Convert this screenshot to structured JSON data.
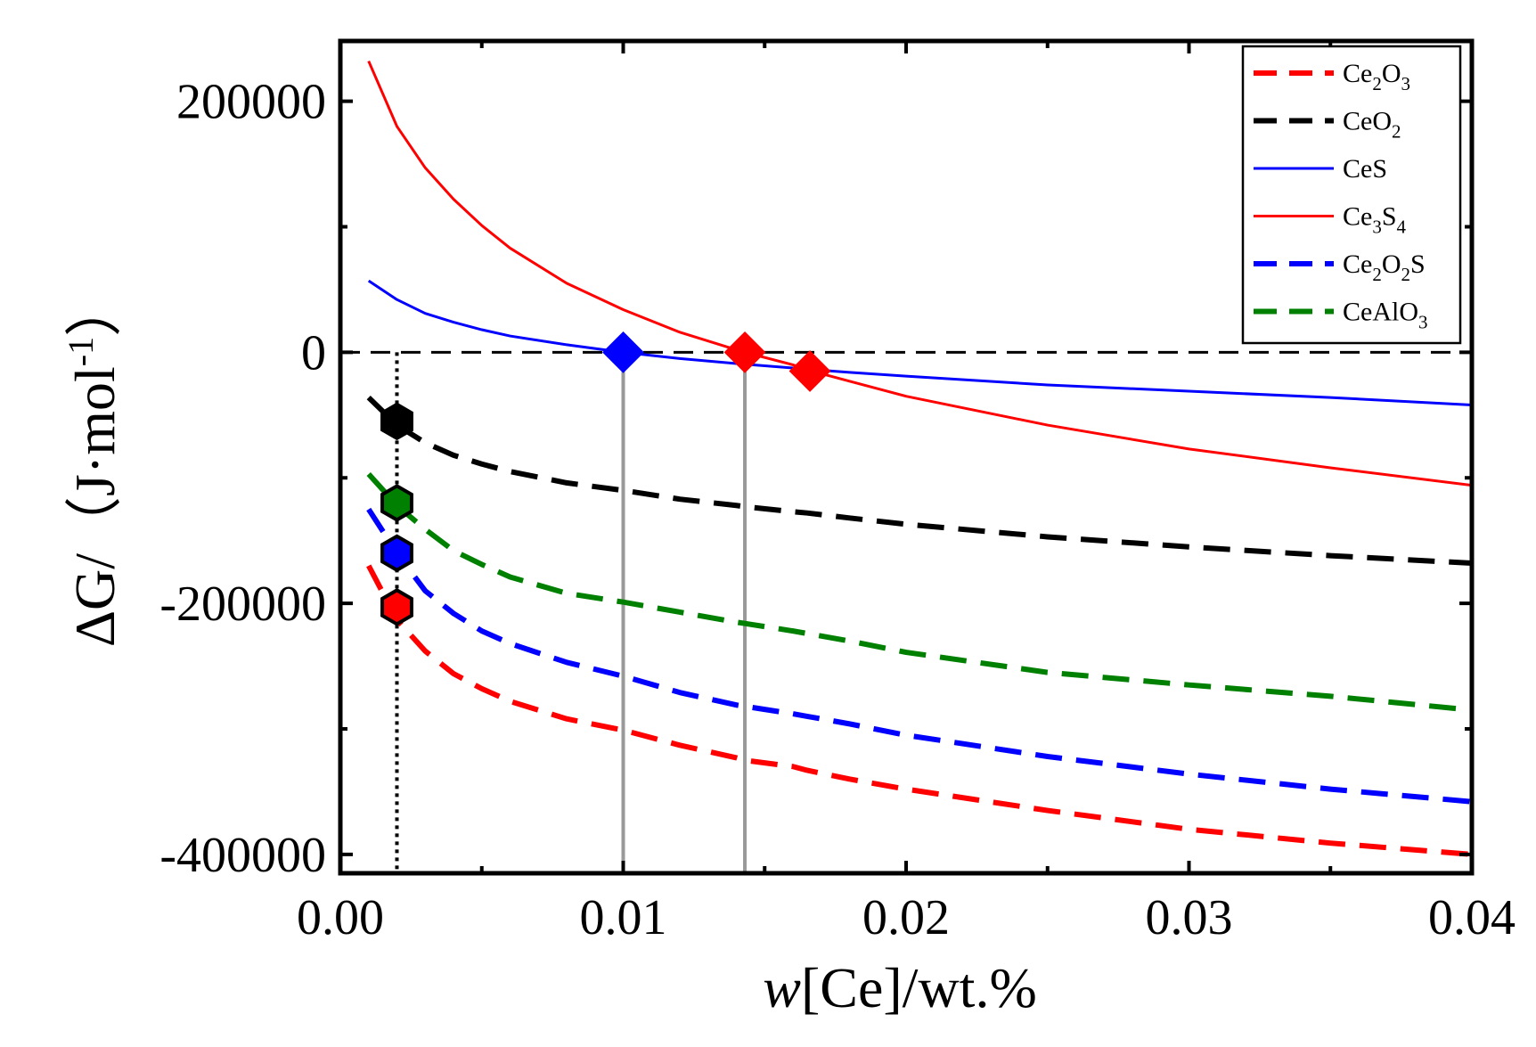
{
  "chart_data": {
    "type": "line",
    "xlabel_italic": "w",
    "xlabel_rest": "[Ce]/wt.%",
    "ylabel": "ΔG/（J·mol",
    "ylabel_sup": "-1",
    "ylabel_close": "）",
    "xlim": [
      0.0,
      0.04
    ],
    "ylim": [
      -415000,
      248000
    ],
    "x_ticks": [
      0.0,
      0.01,
      0.02,
      0.03,
      0.04
    ],
    "x_tick_labels": [
      "0.00",
      "0.01",
      "0.02",
      "0.03",
      "0.04"
    ],
    "x_minor_ticks": [
      0.005,
      0.015,
      0.025,
      0.035
    ],
    "y_ticks": [
      200000,
      0,
      -200000,
      -400000
    ],
    "y_tick_labels": [
      "200000",
      "0",
      "-200000",
      "-400000"
    ],
    "y_minor_ticks": [
      100000,
      -100000,
      -300000
    ],
    "x": [
      0.001,
      0.002,
      0.003,
      0.004,
      0.005,
      0.006,
      0.008,
      0.01,
      0.012,
      0.014,
      0.0143,
      0.016,
      0.0165,
      0.018,
      0.02,
      0.025,
      0.03,
      0.035,
      0.04
    ],
    "series": [
      {
        "name": "Ce2O3",
        "color": "#ff0000",
        "style": "dashed",
        "values": [
          -170000,
          -213000,
          -238000,
          -256000,
          -268000,
          -278000,
          -292000,
          -301000,
          -313000,
          -323000,
          -325000,
          -330000,
          -333000,
          -340000,
          -348000,
          -365000,
          -380000,
          -391000,
          -400000
        ]
      },
      {
        "name": "CeO2",
        "color": "#000000",
        "style": "dashed",
        "values": [
          -36000,
          -58000,
          -72000,
          -82000,
          -89000,
          -95000,
          -104000,
          -110000,
          -117000,
          -122000,
          -123000,
          -127000,
          -128000,
          -132000,
          -137000,
          -147000,
          -155000,
          -162000,
          -168000
        ]
      },
      {
        "name": "CeS",
        "color": "#0000ff",
        "style": "solid",
        "values": [
          57000,
          42000,
          31000,
          24000,
          18000,
          13000,
          6000,
          0,
          -5000,
          -9000,
          -9500,
          -12500,
          -13500,
          -16000,
          -19000,
          -26000,
          -31000,
          -36000,
          -42000
        ]
      },
      {
        "name": "Ce3S4",
        "color": "#ff0000",
        "style": "solid",
        "values": [
          232000,
          180000,
          147000,
          122000,
          101000,
          83000,
          55000,
          34000,
          16000,
          2000,
          0,
          -10000,
          -14000,
          -23000,
          -35000,
          -58000,
          -77000,
          -92000,
          -106000
        ]
      },
      {
        "name": "Ce2O2S",
        "color": "#0000ff",
        "style": "dashed",
        "values": [
          -125000,
          -160000,
          -190000,
          -208000,
          -222000,
          -232000,
          -247000,
          -258000,
          -271000,
          -281000,
          -282000,
          -288000,
          -290000,
          -296000,
          -305000,
          -322000,
          -336000,
          -348000,
          -358000
        ]
      },
      {
        "name": "CeAlO3",
        "color": "#008000",
        "style": "dashed",
        "values": [
          -97000,
          -122000,
          -141000,
          -158000,
          -169000,
          -179000,
          -192000,
          -199000,
          -207000,
          -215000,
          -216000,
          -222000,
          -224000,
          -230000,
          -239000,
          -255000,
          -265000,
          -274000,
          -285000
        ]
      }
    ],
    "legend": {
      "placement": "top-right",
      "entries": [
        {
          "base": "Ce",
          "sub1": "2",
          "mid": "O",
          "sub2": "3",
          "tail": "",
          "color": "#ff0000",
          "style": "dashed"
        },
        {
          "base": "CeO",
          "sub1": "2",
          "mid": "",
          "sub2": "",
          "tail": "",
          "color": "#000000",
          "style": "dashed"
        },
        {
          "base": "CeS",
          "sub1": "",
          "mid": "",
          "sub2": "",
          "tail": "",
          "color": "#0000ff",
          "style": "solid"
        },
        {
          "base": "Ce",
          "sub1": "3",
          "mid": "S",
          "sub2": "4",
          "tail": "",
          "color": "#ff0000",
          "style": "solid"
        },
        {
          "base": "Ce",
          "sub1": "2",
          "mid": "O",
          "sub2": "2",
          "tail": "S",
          "color": "#0000ff",
          "style": "dashed"
        },
        {
          "base": "CeAlO",
          "sub1": "3",
          "mid": "",
          "sub2": "",
          "tail": "",
          "color": "#008000",
          "style": "dashed"
        }
      ]
    },
    "zero_line": {
      "y": 0,
      "color": "#000000",
      "style": "dashed"
    },
    "reference_lines": [
      {
        "x": 0.002,
        "color": "#000000",
        "style": "dotted"
      },
      {
        "x": 0.01,
        "color": "#999999",
        "style": "solid"
      },
      {
        "x": 0.0143,
        "color": "#999999",
        "style": "solid"
      }
    ],
    "diamond_markers": [
      {
        "x": 0.01,
        "y": 0,
        "color": "#0000ff"
      },
      {
        "x": 0.0143,
        "y": 0,
        "color": "#ff0000"
      },
      {
        "x": 0.0166,
        "y": -15000,
        "color": "#ff0000"
      }
    ],
    "hexagon_markers": [
      {
        "x": 0.002,
        "y": -55000,
        "color": "#000000"
      },
      {
        "x": 0.002,
        "y": -120000,
        "color": "#008000"
      },
      {
        "x": 0.002,
        "y": -160000,
        "color": "#0000ff"
      },
      {
        "x": 0.002,
        "y": -203000,
        "color": "#ff0000"
      }
    ]
  }
}
